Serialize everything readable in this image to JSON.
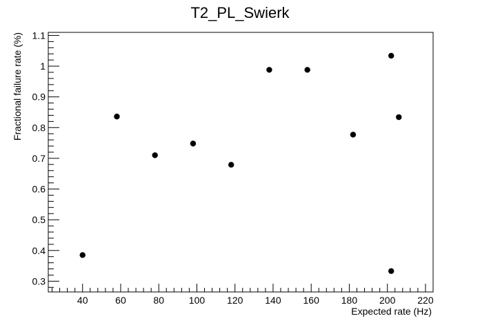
{
  "chart_data": {
    "type": "scatter",
    "title": "T2_PL_Swierk",
    "xlabel": "Expected rate (Hz)",
    "ylabel": "Fractional failure rate (%)",
    "xlim": [
      22,
      224
    ],
    "ylim": [
      0.265,
      1.11
    ],
    "x_ticks": [
      40,
      60,
      80,
      100,
      120,
      140,
      160,
      180,
      200,
      220
    ],
    "y_ticks": [
      0.3,
      0.4,
      0.5,
      0.6,
      0.7,
      0.8,
      0.9,
      1,
      1.1
    ],
    "x_tick_labels": [
      "40",
      "60",
      "80",
      "100",
      "120",
      "140",
      "160",
      "180",
      "200",
      "220"
    ],
    "y_tick_labels": [
      "0.3",
      "0.4",
      "0.5",
      "0.6",
      "0.7",
      "0.8",
      "0.9",
      "1",
      "1.1"
    ],
    "grid": false,
    "legend": "none",
    "marker_color": "#000000",
    "points": [
      {
        "x": 40,
        "y": 0.385
      },
      {
        "x": 58,
        "y": 0.836
      },
      {
        "x": 78,
        "y": 0.71
      },
      {
        "x": 98,
        "y": 0.748
      },
      {
        "x": 118,
        "y": 0.679
      },
      {
        "x": 138,
        "y": 0.988
      },
      {
        "x": 158,
        "y": 0.988
      },
      {
        "x": 182,
        "y": 0.777
      },
      {
        "x": 202,
        "y": 1.034
      },
      {
        "x": 202,
        "y": 0.333
      },
      {
        "x": 206,
        "y": 0.834
      }
    ]
  }
}
